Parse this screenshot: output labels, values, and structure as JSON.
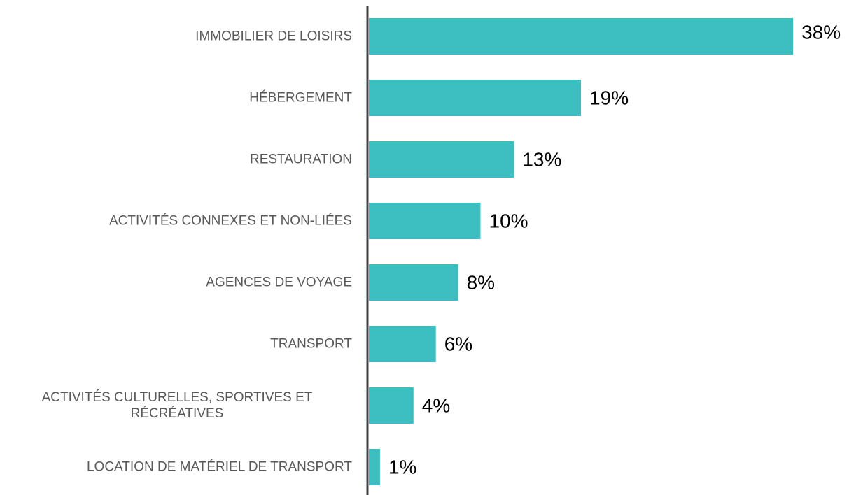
{
  "chart_data": {
    "type": "bar",
    "orientation": "horizontal",
    "categories": [
      "IMMOBILIER DE LOISIRS",
      "HÉBERGEMENT",
      "RESTAURATION",
      "ACTIVITÉS CONNEXES ET NON-LIÉES",
      "AGENCES DE VOYAGE",
      "TRANSPORT",
      "ACTIVITÉS CULTURELLES, SPORTIVES ET RÉCRÉATIVES",
      "LOCATION DE MATÉRIEL DE TRANSPORT"
    ],
    "values": [
      38,
      19,
      13,
      10,
      8,
      6,
      4,
      1
    ],
    "value_labels": [
      "38%",
      "19%",
      "13%",
      "10%",
      "8%",
      "6%",
      "4%",
      "1%"
    ],
    "color": "#3dbfc2",
    "xlim": [
      0,
      40
    ]
  }
}
